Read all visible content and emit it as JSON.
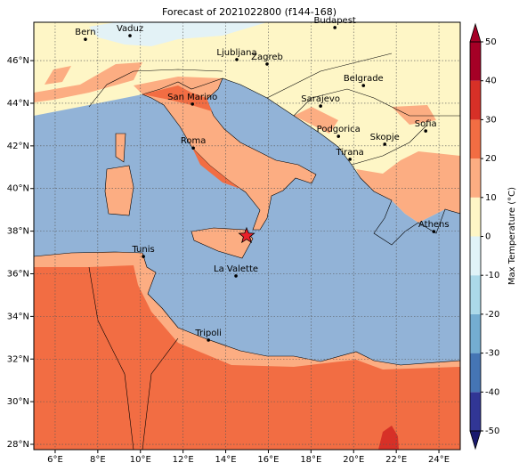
{
  "title": "Forecast of 2021022800 (f144-168)",
  "xlim": [
    5,
    25
  ],
  "ylim": [
    27.75,
    47.8
  ],
  "xticks": [
    {
      "value": 6,
      "label": "6°E"
    },
    {
      "value": 8,
      "label": "8°E"
    },
    {
      "value": 10,
      "label": "10°E"
    },
    {
      "value": 12,
      "label": "12°E"
    },
    {
      "value": 14,
      "label": "14°E"
    },
    {
      "value": 16,
      "label": "16°E"
    },
    {
      "value": 18,
      "label": "18°E"
    },
    {
      "value": 20,
      "label": "20°E"
    },
    {
      "value": 22,
      "label": "22°E"
    },
    {
      "value": 24,
      "label": "24°E"
    }
  ],
  "yticks": [
    {
      "value": 28,
      "label": "28°N"
    },
    {
      "value": 30,
      "label": "30°N"
    },
    {
      "value": 32,
      "label": "32°N"
    },
    {
      "value": 34,
      "label": "34°N"
    },
    {
      "value": 36,
      "label": "36°N"
    },
    {
      "value": 38,
      "label": "38°N"
    },
    {
      "value": 40,
      "label": "40°N"
    },
    {
      "value": 42,
      "label": "42°N"
    },
    {
      "value": 44,
      "label": "44°N"
    },
    {
      "value": 46,
      "label": "46°N"
    }
  ],
  "grid": true,
  "cities": [
    {
      "name": "Bern",
      "lon": 7.42,
      "lat": 47.0
    },
    {
      "name": "Vaduz",
      "lon": 9.51,
      "lat": 47.17
    },
    {
      "name": "Budapest",
      "lon": 19.12,
      "lat": 47.55
    },
    {
      "name": "Ljubljana",
      "lon": 14.52,
      "lat": 46.05
    },
    {
      "name": "Zagreb",
      "lon": 15.94,
      "lat": 45.84
    },
    {
      "name": "Belgrade",
      "lon": 20.46,
      "lat": 44.83
    },
    {
      "name": "San Marino",
      "lon": 12.44,
      "lat": 43.96
    },
    {
      "name": "Sarajevo",
      "lon": 18.45,
      "lat": 43.87
    },
    {
      "name": "Sofia",
      "lon": 23.38,
      "lat": 42.7
    },
    {
      "name": "Podgorica",
      "lon": 19.29,
      "lat": 42.45
    },
    {
      "name": "Skopje",
      "lon": 21.46,
      "lat": 42.08
    },
    {
      "name": "Roma",
      "lon": 12.48,
      "lat": 41.9
    },
    {
      "name": "Tirana",
      "lon": 19.83,
      "lat": 41.37
    },
    {
      "name": "Athens",
      "lon": 23.76,
      "lat": 37.98
    },
    {
      "name": "Tunis",
      "lon": 10.14,
      "lat": 36.81
    },
    {
      "name": "La Valette",
      "lon": 14.48,
      "lat": 35.9
    },
    {
      "name": "Tripoli",
      "lon": 13.19,
      "lat": 32.89
    }
  ],
  "marker": {
    "lon": 14.98,
    "lat": 37.78,
    "color": "#e8212a"
  },
  "colorbar": {
    "label": "Max Temperature (°C)",
    "lim": [
      -50,
      50
    ],
    "ticks": [
      -50,
      -40,
      -30,
      -20,
      -10,
      0,
      10,
      20,
      30,
      40,
      50
    ],
    "colors": [
      "#313695",
      "#4575b4",
      "#74add1",
      "#abd9e9",
      "#e0f3f8",
      "#fef6c6",
      "#fcad82",
      "#f26d43",
      "#d73027",
      "#a50026"
    ],
    "extend": "both"
  }
}
